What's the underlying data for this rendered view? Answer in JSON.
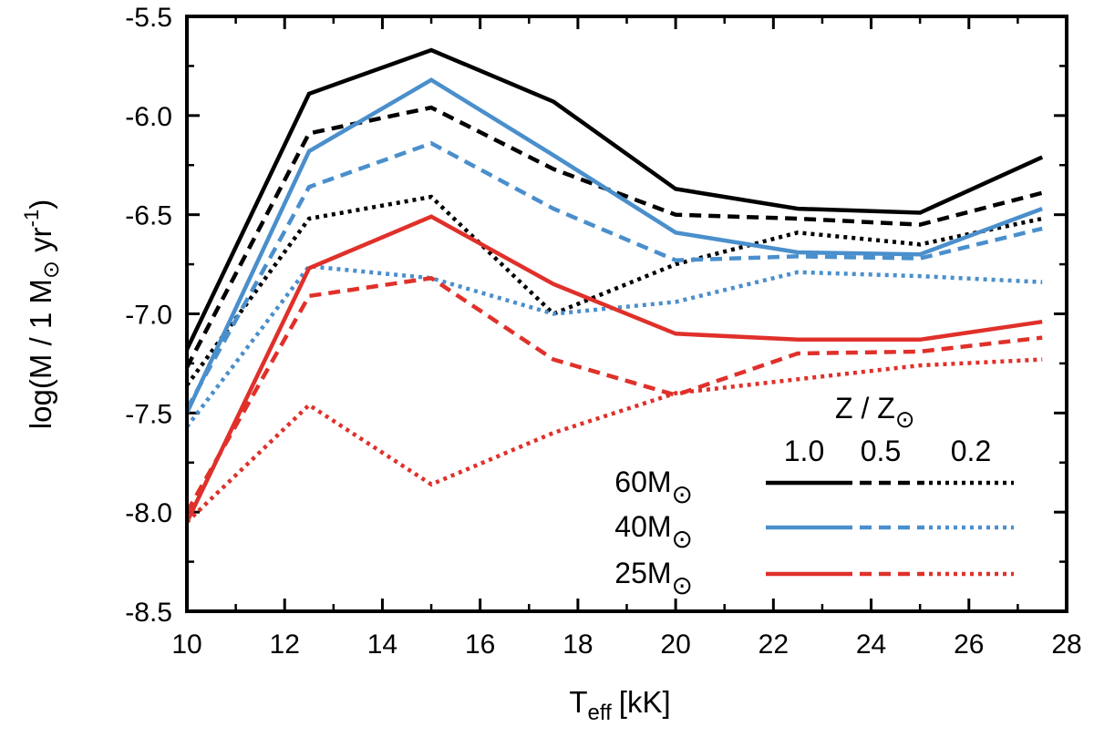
{
  "chart_data": {
    "type": "line",
    "xlabel": {
      "main": "T",
      "sub": "eff",
      "unit": "[kK]"
    },
    "ylabel": {
      "prefix": "log(",
      "mdot": "M",
      "mid": " / 1 M",
      "unit": " yr",
      "exp": "-1",
      "suffix": ")"
    },
    "xlim": [
      10,
      28
    ],
    "ylim": [
      -8.5,
      -5.5
    ],
    "xticks": [
      "10",
      "12",
      "14",
      "16",
      "18",
      "20",
      "22",
      "24",
      "26",
      "28"
    ],
    "yticks": [
      "-8.5",
      "-8.0",
      "-7.5",
      "-7.0",
      "-6.5",
      "-6.0",
      "-5.5"
    ],
    "x": [
      10,
      12.5,
      15,
      17.5,
      20,
      22.5,
      25,
      27.5
    ],
    "colors": {
      "60": "#000000",
      "40": "#4a8fcc",
      "25": "#e0302a"
    },
    "series": [
      {
        "name": "60 Msun, Z/Zsun=1.0",
        "mass": "60",
        "style": "solid",
        "values": [
          -7.18,
          -5.89,
          -5.67,
          -5.93,
          -6.37,
          -6.47,
          -6.49,
          -6.21
        ]
      },
      {
        "name": "60 Msun, Z/Zsun=0.5",
        "mass": "60",
        "style": "dashed",
        "values": [
          -7.27,
          -6.09,
          -5.96,
          -6.27,
          -6.5,
          -6.52,
          -6.55,
          -6.39
        ]
      },
      {
        "name": "60 Msun, Z/Zsun=0.2",
        "mass": "60",
        "style": "dotted",
        "values": [
          -7.36,
          -6.52,
          -6.41,
          -7.0,
          -6.75,
          -6.59,
          -6.65,
          -6.52
        ]
      },
      {
        "name": "40 Msun, Z/Zsun=1.0",
        "mass": "40",
        "style": "solid",
        "values": [
          -7.5,
          -6.18,
          -5.82,
          -6.2,
          -6.59,
          -6.69,
          -6.7,
          -6.47
        ]
      },
      {
        "name": "40 Msun, Z/Zsun=0.5",
        "mass": "40",
        "style": "dashed",
        "values": [
          -7.48,
          -6.36,
          -6.14,
          -6.47,
          -6.73,
          -6.71,
          -6.72,
          -6.57
        ]
      },
      {
        "name": "40 Msun, Z/Zsun=0.2",
        "mass": "40",
        "style": "dotted",
        "values": [
          -7.57,
          -6.76,
          -6.82,
          -7.0,
          -6.94,
          -6.79,
          -6.81,
          -6.84
        ]
      },
      {
        "name": "25 Msun, Z/Zsun=1.0",
        "mass": "25",
        "style": "solid",
        "values": [
          -8.05,
          -6.77,
          -6.51,
          -6.85,
          -7.1,
          -7.13,
          -7.13,
          -7.04
        ]
      },
      {
        "name": "25 Msun, Z/Zsun=0.5",
        "mass": "25",
        "style": "dashed",
        "values": [
          -8.0,
          -6.91,
          -6.82,
          -7.23,
          -7.41,
          -7.2,
          -7.19,
          -7.12
        ]
      },
      {
        "name": "25 Msun, Z/Zsun=0.2",
        "mass": "25",
        "style": "dotted",
        "values": [
          -8.05,
          -7.46,
          -7.86,
          -7.6,
          -7.4,
          -7.33,
          -7.26,
          -7.23
        ]
      }
    ],
    "legend": {
      "title": {
        "text": "Z / Z",
        "sun": "⊙"
      },
      "columns": [
        "1.0",
        "0.5",
        "0.2"
      ],
      "rows": [
        {
          "label": "60M",
          "sun": "⊙",
          "mass": "60"
        },
        {
          "label": "40M",
          "sun": "⊙",
          "mass": "40"
        },
        {
          "label": "25M",
          "sun": "⊙",
          "mass": "25"
        }
      ],
      "placement": "bottom-right"
    }
  }
}
